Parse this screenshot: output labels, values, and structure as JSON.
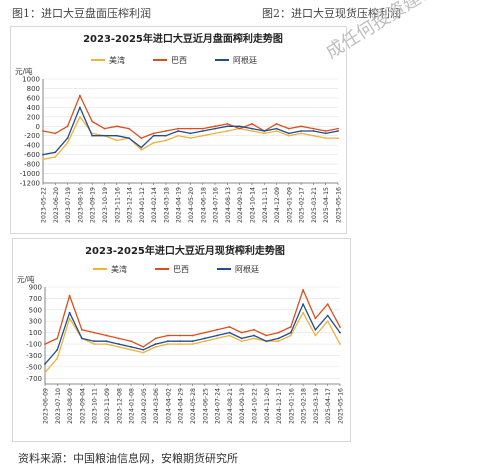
{
  "captions": {
    "fig1": "图1：进口大豆盘面压榨利润",
    "fig2": "图2：进口大豆现货压榨利润"
  },
  "watermark": "成任何投资建议",
  "source": "资料来源：中国粮油信息网，安粮期货研究所",
  "colors": {
    "us": "#f0b23a",
    "brazil": "#d9501e",
    "argentina": "#1f4e8c",
    "grid": "#e2e2e2",
    "axis": "#666666"
  },
  "chart_data": [
    {
      "type": "line",
      "title": "2023-2025年进口大豆近月盘面榨利走势图",
      "ylabel": "元/吨",
      "ylim": [
        -1200,
        1000
      ],
      "yticks": [
        1000,
        800,
        600,
        400,
        200,
        0,
        -200,
        -400,
        -600,
        -800,
        -1000,
        -1200
      ],
      "legend_position": "top",
      "grid": true,
      "x": [
        "2023-05-22",
        "2023-06-20",
        "2023-07-19",
        "2023-08-16",
        "2023-09-19",
        "2023-10-19",
        "2023-11-16",
        "2023-12-14",
        "2024-01-12",
        "2024-02-14",
        "2024-03-18",
        "2024-04-19",
        "2024-05-20",
        "2024-06-18",
        "2024-07-16",
        "2024-08-13",
        "2024-09-10",
        "2024-10-14",
        "2024-11-11",
        "2024-12-09",
        "2025-01-09",
        "2025-02-17",
        "2025-03-21",
        "2025-04-15",
        "2025-05-16"
      ],
      "series": [
        {
          "name": "美湾",
          "color": "#f0b23a",
          "values": [
            -700,
            -650,
            -350,
            200,
            -150,
            -200,
            -300,
            -250,
            -500,
            -350,
            -300,
            -200,
            -250,
            -200,
            -150,
            -100,
            -50,
            -100,
            -150,
            -100,
            -200,
            -150,
            -200,
            -250,
            -250
          ]
        },
        {
          "name": "巴西",
          "color": "#d9501e",
          "values": [
            -100,
            -150,
            0,
            650,
            100,
            -50,
            0,
            -50,
            -250,
            -150,
            -100,
            -50,
            -50,
            -50,
            0,
            50,
            -50,
            50,
            -100,
            50,
            -50,
            0,
            -50,
            -100,
            -50
          ]
        },
        {
          "name": "阿根廷",
          "color": "#1f4e8c",
          "values": [
            -600,
            -550,
            -250,
            400,
            -200,
            -200,
            -200,
            -250,
            -450,
            -200,
            -200,
            -100,
            -150,
            -100,
            -50,
            0,
            0,
            -50,
            -100,
            -50,
            -150,
            -100,
            -100,
            -150,
            -100
          ]
        }
      ]
    },
    {
      "type": "line",
      "title": "2023-2025年进口大豆近月现货榨利走势图",
      "ylabel": "元/吨",
      "ylim": [
        -800,
        900
      ],
      "yticks": [
        900,
        700,
        500,
        300,
        100,
        -100,
        -300,
        -500,
        -700
      ],
      "legend_position": "top",
      "grid": true,
      "x": [
        "2023-06-09",
        "2023-07-10",
        "2023-08-09",
        "2023-09-04",
        "2023-10-11",
        "2023-11-09",
        "2023-12-08",
        "2024-01-08",
        "2024-02-05",
        "2024-03-06",
        "2024-04-02",
        "2024-04-29",
        "2024-05-28",
        "2024-06-25",
        "2024-07-24",
        "2024-08-21",
        "2024-09-19",
        "2024-10-22",
        "2024-11-20",
        "2024-12-17",
        "2025-01-16",
        "2025-02-18",
        "2025-03-19",
        "2025-04-17",
        "2025-05-16"
      ],
      "series": [
        {
          "name": "美湾",
          "color": "#f0b23a",
          "values": [
            -600,
            -350,
            350,
            0,
            -100,
            -100,
            -150,
            -200,
            -250,
            -150,
            -100,
            -100,
            -100,
            -50,
            0,
            50,
            -50,
            0,
            -50,
            -50,
            50,
            450,
            50,
            300,
            -100
          ]
        },
        {
          "name": "巴西",
          "color": "#d9501e",
          "values": [
            -100,
            0,
            750,
            150,
            100,
            50,
            0,
            -50,
            -150,
            0,
            50,
            50,
            50,
            100,
            150,
            200,
            100,
            150,
            50,
            100,
            200,
            850,
            350,
            600,
            200
          ]
        },
        {
          "name": "阿根廷",
          "color": "#1f4e8c",
          "values": [
            -450,
            -200,
            450,
            0,
            -50,
            -50,
            -100,
            -150,
            -200,
            -100,
            -50,
            -50,
            -50,
            0,
            50,
            100,
            0,
            50,
            -50,
            0,
            100,
            600,
            150,
            400,
            100
          ]
        }
      ]
    }
  ]
}
